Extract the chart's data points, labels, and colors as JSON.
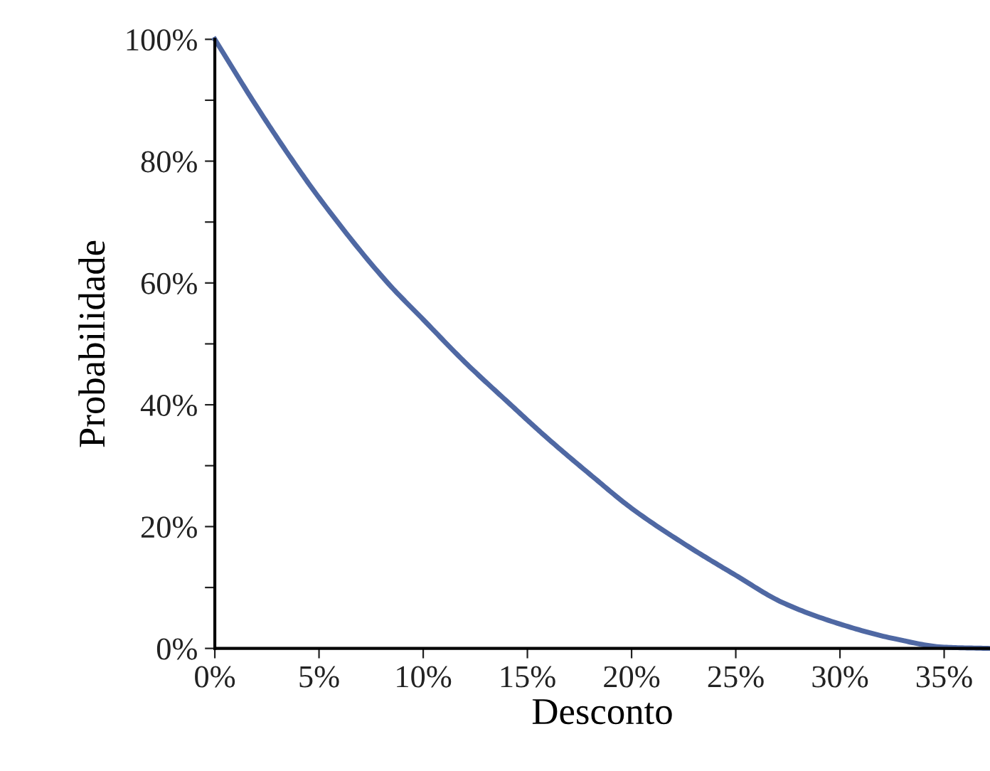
{
  "chart_data": {
    "type": "line",
    "xlabel": "Desconto",
    "ylabel": "Probabilidade",
    "x": [
      0,
      2,
      3.75,
      5,
      8.3,
      10,
      12,
      14.2,
      15.8,
      18.1,
      20,
      22.6,
      25,
      27.2,
      30,
      32.6,
      35,
      37.2
    ],
    "series": [
      {
        "color": "#4f68a3",
        "values": [
          100,
          89,
          80,
          74,
          60,
          54,
          47,
          40,
          35,
          28.3,
          23,
          17,
          12,
          7.6,
          4,
          1.6,
          0.2,
          0
        ]
      }
    ],
    "xlim": [
      0,
      37.2
    ],
    "ylim": [
      0,
      100
    ],
    "xticks": [
      {
        "value": 0,
        "label": "0%"
      },
      {
        "value": 5,
        "label": "5%"
      },
      {
        "value": 10,
        "label": "10%"
      },
      {
        "value": 15,
        "label": "15%"
      },
      {
        "value": 20,
        "label": "20%"
      },
      {
        "value": 25,
        "label": "25%"
      },
      {
        "value": 30,
        "label": "30%"
      },
      {
        "value": 35,
        "label": "35%"
      }
    ],
    "yticks": [
      {
        "value": 0,
        "label": "0%"
      },
      {
        "value": 10,
        "label": null
      },
      {
        "value": 20,
        "label": "20%"
      },
      {
        "value": 30,
        "label": null
      },
      {
        "value": 40,
        "label": "40%"
      },
      {
        "value": 50,
        "label": null
      },
      {
        "value": 60,
        "label": "60%"
      },
      {
        "value": 70,
        "label": null
      },
      {
        "value": 80,
        "label": "80%"
      },
      {
        "value": 90,
        "label": null
      },
      {
        "value": 100,
        "label": "100%"
      }
    ],
    "grid": false,
    "marker": "none",
    "line_style": "solid"
  }
}
